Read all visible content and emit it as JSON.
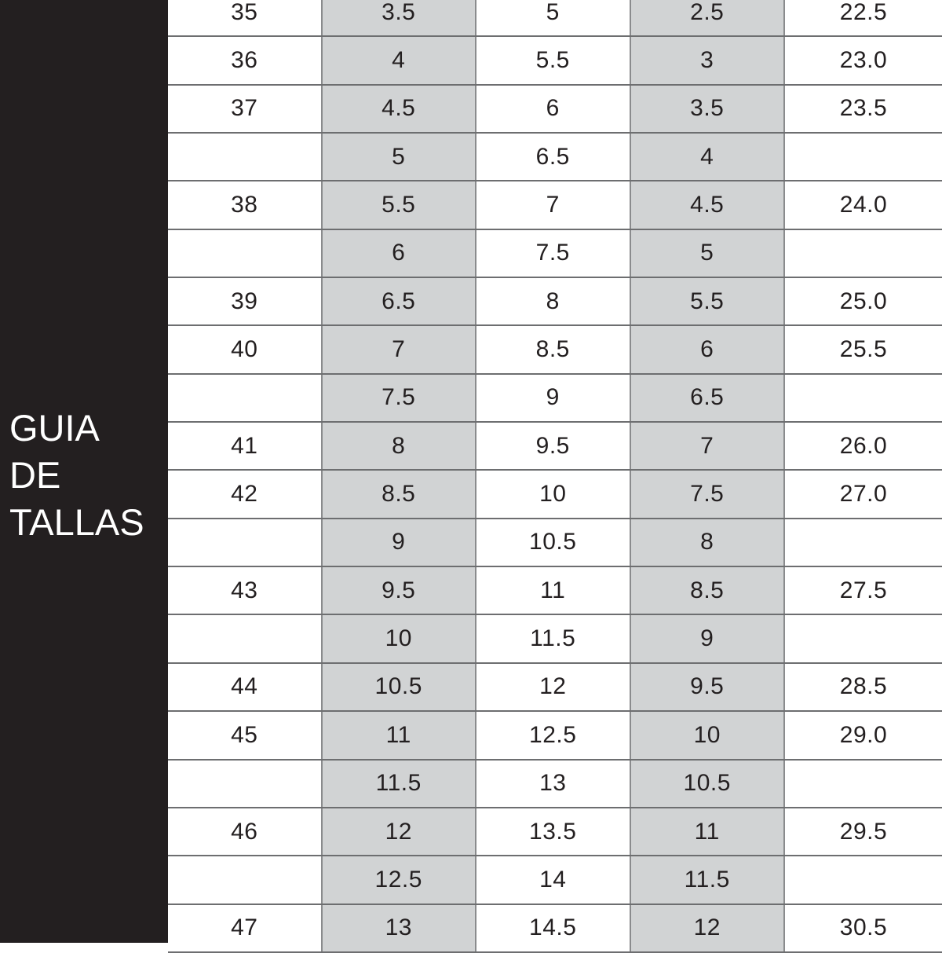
{
  "sidebar": {
    "title_lines": [
      "GUIA",
      "DE",
      "TALLAS"
    ]
  },
  "colors": {
    "sidebar": "#231f20",
    "shaded_column": "#d1d3d4",
    "grid": "#6d6e70"
  },
  "table": {
    "rows": [
      [
        "35",
        "3.5",
        "5",
        "2.5",
        "22.5"
      ],
      [
        "36",
        "4",
        "5.5",
        "3",
        "23.0"
      ],
      [
        "37",
        "4.5",
        "6",
        "3.5",
        "23.5"
      ],
      [
        "",
        "5",
        "6.5",
        "4",
        ""
      ],
      [
        "38",
        "5.5",
        "7",
        "4.5",
        "24.0"
      ],
      [
        "",
        "6",
        "7.5",
        "5",
        ""
      ],
      [
        "39",
        "6.5",
        "8",
        "5.5",
        "25.0"
      ],
      [
        "40",
        "7",
        "8.5",
        "6",
        "25.5"
      ],
      [
        "",
        "7.5",
        "9",
        "6.5",
        ""
      ],
      [
        "41",
        "8",
        "9.5",
        "7",
        "26.0"
      ],
      [
        "42",
        "8.5",
        "10",
        "7.5",
        "27.0"
      ],
      [
        "",
        "9",
        "10.5",
        "8",
        ""
      ],
      [
        "43",
        "9.5",
        "11",
        "8.5",
        "27.5"
      ],
      [
        "",
        "10",
        "11.5",
        "9",
        ""
      ],
      [
        "44",
        "10.5",
        "12",
        "9.5",
        "28.5"
      ],
      [
        "45",
        "11",
        "12.5",
        "10",
        "29.0"
      ],
      [
        "",
        "11.5",
        "13",
        "10.5",
        ""
      ],
      [
        "46",
        "12",
        "13.5",
        "11",
        "29.5"
      ],
      [
        "",
        "12.5",
        "14",
        "11.5",
        ""
      ],
      [
        "47",
        "13",
        "14.5",
        "12",
        "30.5"
      ]
    ]
  }
}
